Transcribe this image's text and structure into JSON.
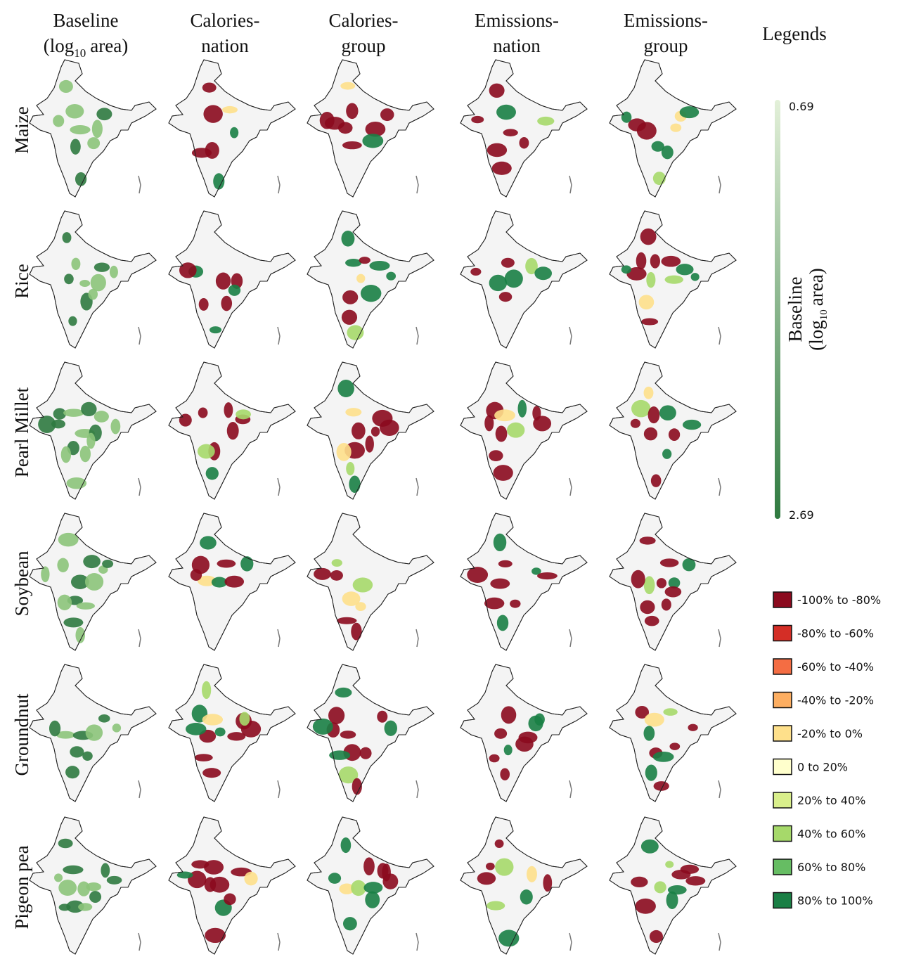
{
  "figure": {
    "columns": [
      {
        "top": "Baseline",
        "bottom": "(log",
        "sub": "10",
        "after": "area)"
      },
      {
        "top": "Calories-",
        "bottom": "nation"
      },
      {
        "top": "Calories-",
        "bottom": "group"
      },
      {
        "top": "Emissions-",
        "bottom": "nation"
      },
      {
        "top": "Emissions-",
        "bottom": "group"
      }
    ],
    "legend_title": "Legends",
    "rows": [
      "Maize",
      "Rice",
      "Pearl Millet",
      "Soybean",
      "Groundnut",
      "Pigeon pea"
    ],
    "colorbar": {
      "max_label": "0.69",
      "min_label": "2.69",
      "label_top": "Baseline",
      "label_bottom": "(log",
      "label_sub": "10",
      "label_after": "area)",
      "colors": [
        "#e3f0d9",
        "#2f7a40"
      ]
    },
    "categories": [
      {
        "label": "-100% to -80%",
        "color": "#8b0a1e"
      },
      {
        "label": "-80% to -60%",
        "color": "#d42e26"
      },
      {
        "label": "-60% to -40%",
        "color": "#f46d43"
      },
      {
        "label": "-40% to -20%",
        "color": "#fdae61"
      },
      {
        "label": "-20% to 0%",
        "color": "#fee08b"
      },
      {
        "label": "0 to 20%",
        "color": "#ffffcc"
      },
      {
        "label": "20% to 40%",
        "color": "#d9ef8b"
      },
      {
        "label": "40% to 60%",
        "color": "#a6d96a"
      },
      {
        "label": "60% to 80%",
        "color": "#66bd63"
      },
      {
        "label": "80% to 100%",
        "color": "#1a7f45"
      }
    ]
  }
}
